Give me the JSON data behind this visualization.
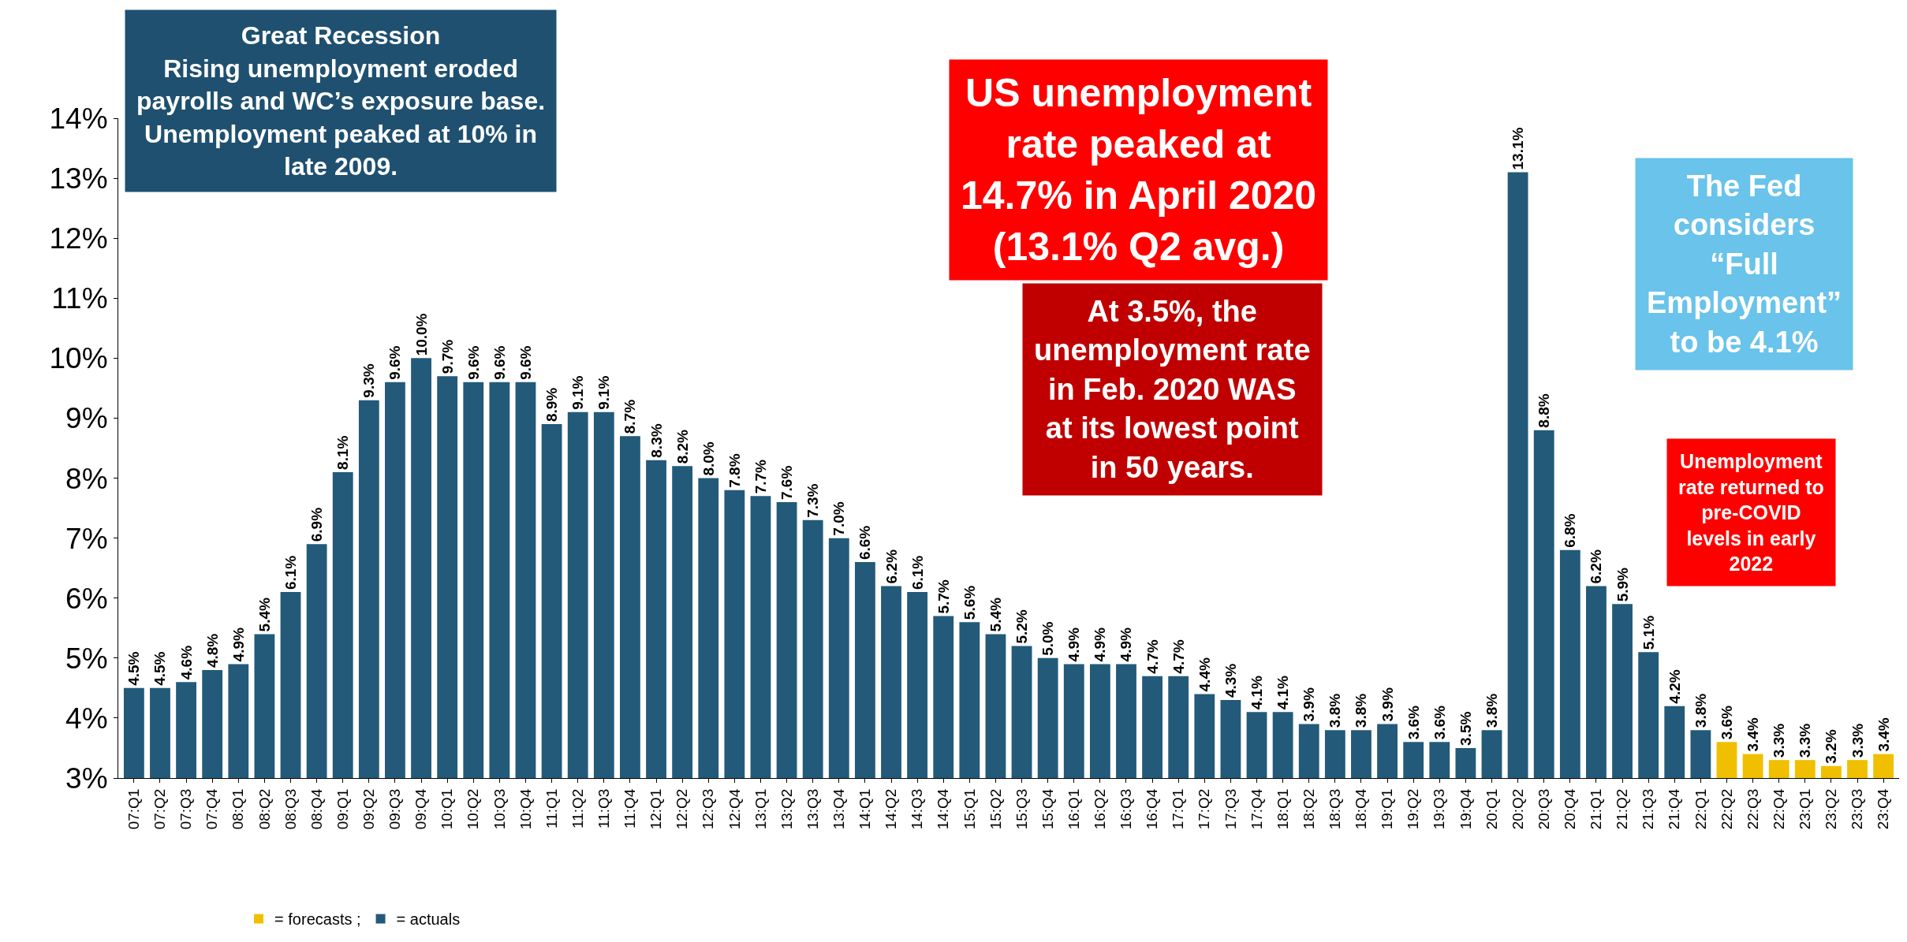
{
  "chart_data": {
    "type": "bar",
    "categories": [
      "07:Q1",
      "07:Q2",
      "07:Q3",
      "07:Q4",
      "08:Q1",
      "08:Q2",
      "08:Q3",
      "08:Q4",
      "09:Q1",
      "09:Q2",
      "09:Q3",
      "09:Q4",
      "10:Q1",
      "10:Q2",
      "10:Q3",
      "10:Q4",
      "11:Q1",
      "11:Q2",
      "11:Q3",
      "11:Q4",
      "12:Q1",
      "12:Q2",
      "12:Q3",
      "12:Q4",
      "13:Q1",
      "13:Q2",
      "13:Q3",
      "13:Q4",
      "14:Q1",
      "14:Q2",
      "14:Q3",
      "14:Q4",
      "15:Q1",
      "15:Q2",
      "15:Q3",
      "15:Q4",
      "16:Q1",
      "16:Q2",
      "16:Q3",
      "16:Q4",
      "17:Q1",
      "17:Q2",
      "17:Q3",
      "17:Q4",
      "18:Q1",
      "18:Q2",
      "18:Q3",
      "18:Q4",
      "19:Q1",
      "19:Q2",
      "19:Q3",
      "19:Q4",
      "20:Q1",
      "20:Q2",
      "20:Q3",
      "20:Q4",
      "21:Q1",
      "21:Q2",
      "21:Q3",
      "21:Q4",
      "22:Q1",
      "22:Q2",
      "22:Q3",
      "22:Q4",
      "23:Q1",
      "23:Q2",
      "23:Q3",
      "23:Q4"
    ],
    "series": [
      {
        "name": "= forecasts ;",
        "color": "#f0c000",
        "values": [
          null,
          null,
          null,
          null,
          null,
          null,
          null,
          null,
          null,
          null,
          null,
          null,
          null,
          null,
          null,
          null,
          null,
          null,
          null,
          null,
          null,
          null,
          null,
          null,
          null,
          null,
          null,
          null,
          null,
          null,
          null,
          null,
          null,
          null,
          null,
          null,
          null,
          null,
          null,
          null,
          null,
          null,
          null,
          null,
          null,
          null,
          null,
          null,
          null,
          null,
          null,
          null,
          null,
          null,
          null,
          null,
          null,
          null,
          null,
          null,
          null,
          3.6,
          3.4,
          3.3,
          3.3,
          3.2,
          3.3,
          3.4
        ],
        "value_labels": [
          null,
          null,
          null,
          null,
          null,
          null,
          null,
          null,
          null,
          null,
          null,
          null,
          null,
          null,
          null,
          null,
          null,
          null,
          null,
          null,
          null,
          null,
          null,
          null,
          null,
          null,
          null,
          null,
          null,
          null,
          null,
          null,
          null,
          null,
          null,
          null,
          null,
          null,
          null,
          null,
          null,
          null,
          null,
          null,
          null,
          null,
          null,
          null,
          null,
          null,
          null,
          null,
          null,
          null,
          null,
          null,
          null,
          null,
          null,
          null,
          null,
          "3.6%",
          "3.4%",
          "3.3%",
          "3.3%",
          "3.2%",
          "3.3%",
          "3.4%"
        ]
      },
      {
        "name": "= actuals",
        "color": "#235a7a",
        "values": [
          4.5,
          4.5,
          4.6,
          4.8,
          4.9,
          5.4,
          6.1,
          6.9,
          8.1,
          9.3,
          9.6,
          10.0,
          9.7,
          9.6,
          9.6,
          9.6,
          8.9,
          9.1,
          9.1,
          8.7,
          8.3,
          8.2,
          8.0,
          7.8,
          7.7,
          7.6,
          7.3,
          7.0,
          6.6,
          6.2,
          6.1,
          5.7,
          5.6,
          5.4,
          5.2,
          5.0,
          4.9,
          4.9,
          4.9,
          4.7,
          4.7,
          4.4,
          4.3,
          4.1,
          4.1,
          3.9,
          3.8,
          3.8,
          3.9,
          3.6,
          3.6,
          3.5,
          3.8,
          13.1,
          8.8,
          6.8,
          6.2,
          5.9,
          5.1,
          4.2,
          3.8,
          null,
          null,
          null,
          null,
          null,
          null,
          null
        ],
        "value_labels": [
          "4.5%",
          "4.5%",
          "4.6%",
          "4.8%",
          "4.9%",
          "5.4%",
          "6.1%",
          "6.9%",
          "8.1%",
          "9.3%",
          "9.6%",
          "10.0%",
          "9.7%",
          "9.6%",
          "9.6%",
          "9.6%",
          "8.9%",
          "9.1%",
          "9.1%",
          "8.7%",
          "8.3%",
          "8.2%",
          "8.0%",
          "7.8%",
          "7.7%",
          "7.6%",
          "7.3%",
          "7.0%",
          "6.6%",
          "6.2%",
          "6.1%",
          "5.7%",
          "5.6%",
          "5.4%",
          "5.2%",
          "5.0%",
          "4.9%",
          "4.9%",
          "4.9%",
          "4.7%",
          "4.7%",
          "4.4%",
          "4.3%",
          "4.1%",
          "4.1%",
          "3.9%",
          "3.8%",
          "3.8%",
          "3.9%",
          "3.6%",
          "3.6%",
          "3.5%",
          "3.8%",
          "13.1%",
          "8.8%",
          "6.8%",
          "6.2%",
          "5.9%",
          "5.1%",
          "4.2%",
          "3.8%",
          null,
          null,
          null,
          null,
          null,
          null,
          null
        ]
      }
    ],
    "ylim": [
      3,
      14
    ],
    "yticks": [
      {
        "value": 3,
        "label": "3%"
      },
      {
        "value": 4,
        "label": "4%"
      },
      {
        "value": 5,
        "label": "5%"
      },
      {
        "value": 6,
        "label": "6%"
      },
      {
        "value": 7,
        "label": "7%"
      },
      {
        "value": 8,
        "label": "8%"
      },
      {
        "value": 9,
        "label": "9%"
      },
      {
        "value": 10,
        "label": "10%"
      },
      {
        "value": 11,
        "label": "11%"
      },
      {
        "value": 12,
        "label": "12%"
      },
      {
        "value": 13,
        "label": "13%"
      },
      {
        "value": 14,
        "label": "14%"
      }
    ],
    "legend": "bottom left",
    "annotations": [
      "Great Recession\nRising unemployment eroded\npayrolls and WC’s exposure base.\nUnemployment peaked at 10% in\nlate 2009.",
      "US unemployment\nrate peaked at\n14.7% in April 2020\n(13.1% Q2 avg.)",
      "At 3.5%, the\nunemployment rate\nin Feb. 2020 WAS\nat its lowest point\nin 50 years.",
      "The Fed\nconsiders\n“Full\nEmployment”\nto be 4.1%",
      "Unemployment\nrate returned to\npre-COVID\nlevels in early\n2022"
    ]
  }
}
